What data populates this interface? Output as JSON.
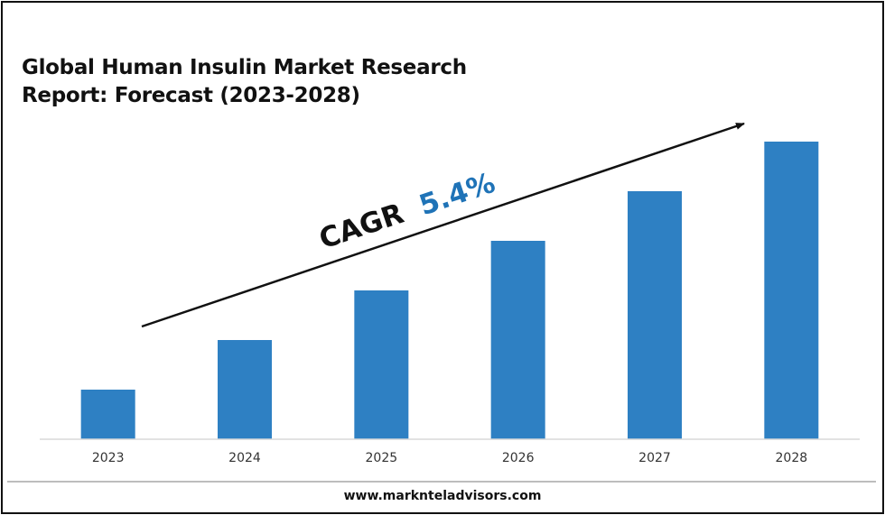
{
  "chart_data": {
    "type": "bar",
    "title": "Global Human Insulin Market Research Report: Forecast (2023-2028)",
    "title_lines": [
      "Global Human Insulin Market Research",
      "Report: Forecast (2023-2028)"
    ],
    "categories": [
      "2023",
      "2024",
      "2025",
      "2026",
      "2027",
      "2028"
    ],
    "values": [
      1.0,
      2.0,
      3.0,
      4.0,
      5.0,
      6.0
    ],
    "ylim": [
      0,
      6.0
    ],
    "bar_color": "#2e80c3",
    "grid": false,
    "annotation": {
      "prefix": "CAGR",
      "value": "5.4%",
      "prefix_color": "#111111",
      "value_color": "#1f73b7"
    }
  },
  "footer": {
    "url": "www.marknteladvisors.com"
  }
}
